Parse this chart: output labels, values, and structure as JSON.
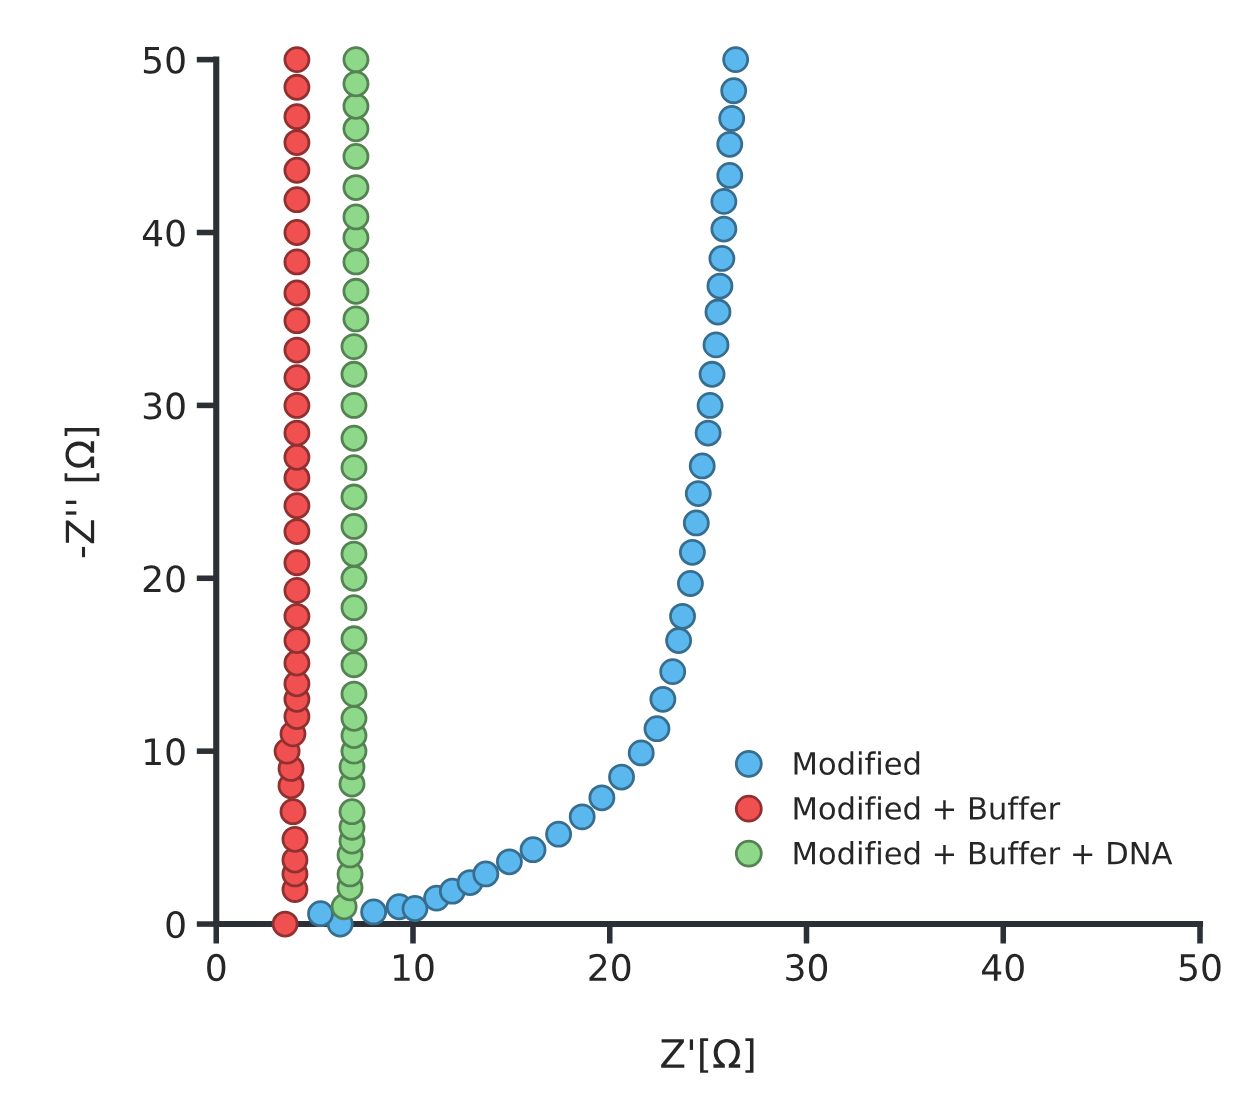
{
  "chart_data": {
    "type": "scatter",
    "xlabel": "Z'[Ω]",
    "ylabel": "-Z'' [Ω]",
    "xlim": [
      0,
      50
    ],
    "ylim": [
      0,
      50
    ],
    "xticks": [
      0,
      10,
      20,
      30,
      40,
      50
    ],
    "yticks": [
      0,
      10,
      20,
      30,
      40,
      50
    ],
    "grid": false,
    "legend": "bottom right",
    "marker": "circle",
    "series": [
      {
        "name": "Modified",
        "color": "#5bb8ee",
        "x": [
          6.3,
          5.3,
          8.0,
          9.3,
          10.1,
          11.2,
          12.0,
          12.9,
          13.7,
          14.9,
          16.1,
          17.4,
          18.6,
          19.6,
          20.6,
          21.6,
          22.4,
          22.7,
          23.2,
          23.5,
          23.7,
          24.1,
          24.2,
          24.4,
          24.5,
          24.7,
          25.0,
          25.1,
          25.2,
          25.4,
          25.5,
          25.6,
          25.7,
          25.8,
          25.8,
          26.1,
          26.1,
          26.2,
          26.3,
          26.4
        ],
        "values": [
          0.0,
          0.6,
          0.7,
          1.0,
          0.9,
          1.5,
          1.9,
          2.4,
          2.9,
          3.6,
          4.3,
          5.2,
          6.2,
          7.3,
          8.5,
          9.9,
          11.3,
          13.0,
          14.6,
          16.4,
          17.8,
          19.7,
          21.5,
          23.2,
          24.9,
          26.5,
          28.4,
          30.0,
          31.8,
          33.5,
          35.4,
          36.9,
          38.5,
          40.2,
          41.8,
          43.3,
          45.1,
          46.6,
          48.2,
          50.0
        ]
      },
      {
        "name": "Modified + Buffer",
        "color": "#f05050",
        "x": [
          3.5,
          4.0,
          4.0,
          4.0,
          4.0,
          3.9,
          3.8,
          3.8,
          3.6,
          3.9,
          4.1,
          4.1,
          4.1,
          4.1,
          4.1,
          4.1,
          4.1,
          4.1,
          4.1,
          4.1,
          4.1,
          4.1,
          4.1,
          4.1,
          4.1,
          4.1,
          4.1,
          4.1,
          4.1,
          4.1,
          4.1,
          4.1,
          4.1,
          4.1,
          4.1,
          4.1
        ],
        "values": [
          0.0,
          2.0,
          2.9,
          3.7,
          4.9,
          6.5,
          8.0,
          9.0,
          10.0,
          11.0,
          12.0,
          13.0,
          13.9,
          15.1,
          16.4,
          17.8,
          19.3,
          20.9,
          22.7,
          24.2,
          25.8,
          27.0,
          28.4,
          30.0,
          31.6,
          33.2,
          34.9,
          36.5,
          38.3,
          40.0,
          41.9,
          43.6,
          45.2,
          46.7,
          48.4,
          50.0
        ]
      },
      {
        "name": "Modified + Buffer + DNA",
        "color": "#8ed88a",
        "x": [
          6.5,
          6.8,
          6.8,
          6.8,
          6.9,
          6.9,
          6.9,
          6.9,
          6.9,
          7.0,
          7.0,
          7.0,
          7.0,
          7.0,
          7.0,
          7.0,
          7.0,
          7.0,
          7.0,
          7.0,
          7.0,
          7.0,
          7.0,
          7.0,
          7.0,
          7.1,
          7.1,
          7.1,
          7.1,
          7.1,
          7.1,
          7.1,
          7.1,
          7.1,
          7.1,
          7.1
        ],
        "values": [
          1.0,
          2.1,
          2.9,
          4.0,
          4.8,
          5.6,
          6.5,
          8.1,
          9.1,
          10.0,
          10.9,
          11.9,
          13.3,
          15.0,
          16.5,
          18.3,
          20.0,
          21.4,
          23.0,
          24.7,
          26.4,
          28.1,
          30.0,
          31.8,
          33.4,
          35.0,
          36.6,
          38.3,
          39.7,
          40.9,
          42.6,
          44.4,
          46.0,
          47.3,
          48.6,
          50.0
        ]
      }
    ]
  }
}
